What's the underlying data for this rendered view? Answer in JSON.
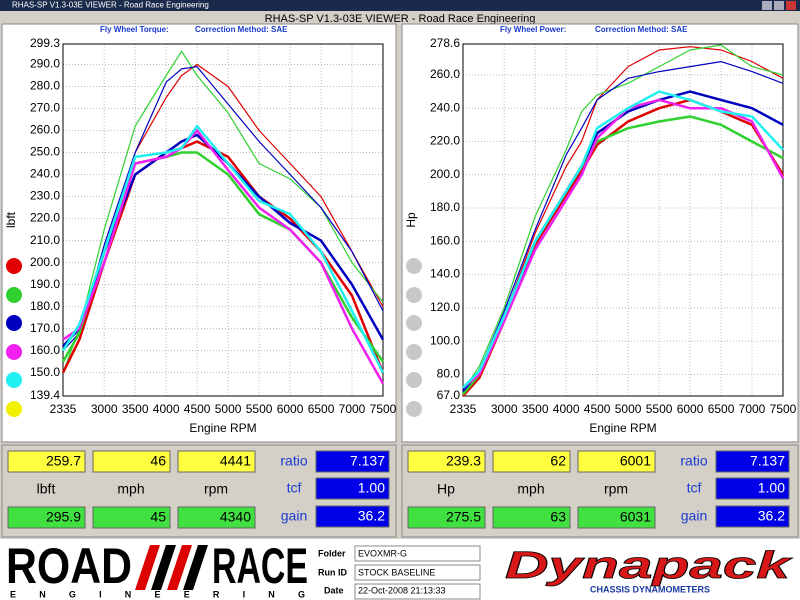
{
  "window": {
    "title": "RHAS-SP V1.3-03E VIEWER - Road Race Engineering"
  },
  "header": {
    "title": "RHAS-SP V1.3-03E VIEWER - Road Race Engineering"
  },
  "chart_data": [
    {
      "type": "line",
      "title": "Fly Wheel Torque:",
      "subtitle": "Correction Method: SAE",
      "x_label": "Engine RPM",
      "y_label": "lbft",
      "x": [
        2335,
        2600,
        3000,
        3500,
        4000,
        4250,
        4500,
        5000,
        5500,
        6000,
        6500,
        7000,
        7500
      ],
      "xlim": [
        2335,
        7500
      ],
      "xticks": [
        2335,
        3000,
        3500,
        4000,
        4500,
        5000,
        5500,
        6000,
        6500,
        7000,
        7500
      ],
      "ylim": [
        139.4,
        299.3
      ],
      "yticks": [
        139.4,
        {
          "value": 150,
          "label": "150.0"
        },
        {
          "value": 160,
          "label": "160.0"
        },
        {
          "value": 170,
          "label": "170.0"
        },
        {
          "value": 180,
          "label": "180.0"
        },
        {
          "value": 190,
          "label": "190.0"
        },
        {
          "value": 200,
          "label": "200.0"
        },
        {
          "value": 210,
          "label": "210.0"
        },
        {
          "value": 220,
          "label": "220.0"
        },
        {
          "value": 230,
          "label": "230.0"
        },
        {
          "value": 240,
          "label": "240.0"
        },
        {
          "value": 250,
          "label": "250.0"
        },
        {
          "value": 260,
          "label": "260.0"
        },
        {
          "value": 270,
          "label": "270.0"
        },
        {
          "value": 280,
          "label": "280.0"
        },
        {
          "value": 290,
          "label": "290.0"
        },
        299.3
      ],
      "grid": true,
      "series": [
        {
          "color": "#e00000",
          "width": 1.2,
          "values": [
            150,
            165,
            205,
            250,
            275,
            285,
            290,
            280,
            260,
            245,
            230,
            205,
            180
          ]
        },
        {
          "color": "#30d030",
          "width": 1.2,
          "values": [
            150,
            170,
            215,
            262,
            285,
            296,
            285,
            268,
            245,
            238,
            225,
            200,
            182
          ]
        },
        {
          "color": "#0000c0",
          "width": 1.2,
          "values": [
            160,
            168,
            208,
            250,
            282,
            288,
            289,
            272,
            255,
            240,
            225,
            205,
            178
          ]
        },
        {
          "color": "#e00000",
          "width": 2.5,
          "values": [
            150,
            165,
            200,
            240,
            250,
            252,
            255,
            248,
            230,
            220,
            205,
            185,
            150
          ]
        },
        {
          "color": "#30d030",
          "width": 2.5,
          "values": [
            155,
            168,
            205,
            245,
            248,
            250,
            250,
            240,
            222,
            215,
            200,
            175,
            155
          ]
        },
        {
          "color": "#0000c0",
          "width": 2.5,
          "values": [
            162,
            170,
            205,
            240,
            250,
            255,
            258,
            245,
            230,
            218,
            210,
            190,
            165
          ]
        },
        {
          "color": "#f020f0",
          "width": 2.5,
          "values": [
            165,
            170,
            200,
            245,
            248,
            252,
            260,
            242,
            225,
            215,
            200,
            170,
            145
          ]
        },
        {
          "color": "#20f0f0",
          "width": 2.5,
          "values": [
            160,
            172,
            205,
            248,
            250,
            252,
            262,
            245,
            228,
            222,
            205,
            178,
            150
          ]
        }
      ]
    },
    {
      "type": "line",
      "title": "Fly Wheel Power:",
      "subtitle": "Correction Method: SAE",
      "x_label": "Engine RPM",
      "y_label": "Hp",
      "x": [
        2335,
        2600,
        3000,
        3500,
        4000,
        4250,
        4500,
        5000,
        5500,
        6000,
        6500,
        7000,
        7500
      ],
      "xlim": [
        2335,
        7500
      ],
      "xticks": [
        2335,
        3000,
        3500,
        4000,
        4500,
        5000,
        5500,
        6000,
        6500,
        7000,
        7500
      ],
      "ylim": [
        67.0,
        278.6
      ],
      "yticks": [
        {
          "value": 67,
          "label": "67.0"
        },
        {
          "value": 80,
          "label": "80.0"
        },
        {
          "value": 100,
          "label": "100.0"
        },
        {
          "value": 120,
          "label": "120.0"
        },
        {
          "value": 140,
          "label": "140.0"
        },
        {
          "value": 160,
          "label": "160.0"
        },
        {
          "value": 180,
          "label": "180.0"
        },
        {
          "value": 200,
          "label": "200.0"
        },
        {
          "value": 220,
          "label": "220.0"
        },
        {
          "value": 240,
          "label": "240.0"
        },
        {
          "value": 260,
          "label": "260.0"
        },
        278.6
      ],
      "grid": true,
      "series": [
        {
          "color": "#e00000",
          "width": 1.2,
          "values": [
            68,
            80,
            115,
            165,
            205,
            220,
            245,
            265,
            275,
            277,
            275,
            268,
            258
          ]
        },
        {
          "color": "#30d030",
          "width": 1.2,
          "values": [
            70,
            85,
            120,
            175,
            215,
            238,
            248,
            255,
            265,
            275,
            278,
            265,
            260
          ]
        },
        {
          "color": "#0000c0",
          "width": 1.2,
          "values": [
            70,
            82,
            118,
            167,
            212,
            228,
            245,
            258,
            262,
            265,
            268,
            262,
            255
          ]
        },
        {
          "color": "#e00000",
          "width": 2.5,
          "values": [
            67,
            78,
            112,
            158,
            188,
            202,
            218,
            232,
            240,
            245,
            238,
            230,
            200
          ]
        },
        {
          "color": "#30d030",
          "width": 2.5,
          "values": [
            68,
            80,
            115,
            160,
            190,
            205,
            220,
            228,
            232,
            235,
            230,
            220,
            210
          ]
        },
        {
          "color": "#0000c0",
          "width": 2.5,
          "values": [
            70,
            82,
            115,
            160,
            190,
            205,
            225,
            238,
            245,
            250,
            245,
            240,
            230
          ]
        },
        {
          "color": "#f020f0",
          "width": 2.5,
          "values": [
            72,
            80,
            112,
            155,
            185,
            200,
            222,
            240,
            245,
            240,
            240,
            232,
            198
          ]
        },
        {
          "color": "#20f0f0",
          "width": 2.5,
          "values": [
            72,
            82,
            115,
            160,
            190,
            205,
            228,
            240,
            250,
            245,
            238,
            235,
            215
          ]
        }
      ]
    }
  ],
  "readouts": [
    {
      "row1": [
        "259.7",
        "46",
        "4441"
      ],
      "units": [
        "lbft",
        "mph",
        "rpm"
      ],
      "row2": [
        "295.9",
        "45",
        "4340"
      ],
      "ratio_label": "ratio",
      "ratio": "7.137",
      "tcf_label": "tcf",
      "tcf": "1.00",
      "gain_label": "gain",
      "gain": "36.2"
    },
    {
      "row1": [
        "239.3",
        "62",
        "6001"
      ],
      "units": [
        "Hp",
        "mph",
        "rpm"
      ],
      "row2": [
        "275.5",
        "63",
        "6031"
      ],
      "ratio_label": "ratio",
      "ratio": "7.137",
      "tcf_label": "tcf",
      "tcf": "1.00",
      "gain_label": "gain",
      "gain": "36.2"
    }
  ],
  "logo": {
    "road": "ROAD",
    "race": "RACE",
    "engineering": "E N G I N E E R I N G"
  },
  "run_info": {
    "folder_label": "Folder",
    "folder": "EVOXMR-G",
    "run_label": "Run ID",
    "run": "STOCK BASELINE",
    "date_label": "Date",
    "date": "22-Oct-2008  21:13:33"
  },
  "brand": {
    "name": "Dynapack",
    "tagline": "CHASSIS DYNAMOMETERS"
  }
}
